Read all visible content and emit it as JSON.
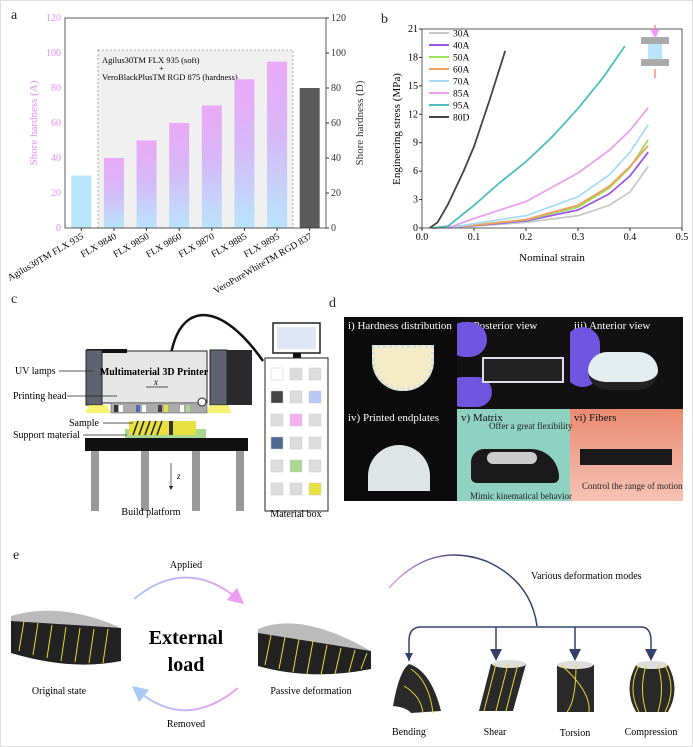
{
  "panels": {
    "a": "a",
    "b": "b",
    "c": "c",
    "d": "d",
    "e": "e"
  },
  "chart_data": [
    {
      "type": "bar",
      "title": "",
      "categories": [
        "Agilus30TM FLX 935",
        "FLX 9840",
        "FLX 9850",
        "FLX 9860",
        "FLX 9870",
        "FLX 9885",
        "FLX 9895",
        "VeroPureWhiteTM RGD 837"
      ],
      "values": [
        30,
        40,
        50,
        60,
        70,
        85,
        95,
        80
      ],
      "value_axis": [
        "A",
        "A",
        "A",
        "A",
        "A",
        "A",
        "A",
        "D"
      ],
      "ylabel": "Shore hardness (A)",
      "ylabel_right": "Shore hardness (D)",
      "ylim": [
        0,
        120
      ],
      "yticks": [
        "0",
        "20",
        "40",
        "60",
        "80",
        "100",
        "120"
      ],
      "annotation": {
        "line1": "Agilus30TM FLX 935 (soft)",
        "plus": "+",
        "line2": "VeroBlackPlusTM RGD 875 (hardness)"
      },
      "colors": {
        "soft": "#b9e4fb",
        "mix_top": "#eaa9f7",
        "rigid": "#5a5a5a",
        "box": "#f0f0f0"
      }
    },
    {
      "type": "line",
      "xlabel": "Nominal strain",
      "ylabel": "Engineering stress (MPa)",
      "xlim": [
        0,
        0.5
      ],
      "ylim": [
        0,
        21
      ],
      "xticks": [
        "0.0",
        "0.1",
        "0.2",
        "0.3",
        "0.4",
        "0.5"
      ],
      "yticks": [
        "0",
        "3",
        "6",
        "9",
        "12",
        "15",
        "18",
        "21"
      ],
      "legend_position": "top-left",
      "series": [
        {
          "name": "30A",
          "color": "#c8c8c8",
          "x": [
            0.02,
            0.1,
            0.2,
            0.3,
            0.36,
            0.4,
            0.435
          ],
          "y": [
            0,
            0.2,
            0.6,
            1.3,
            2.4,
            3.8,
            6.5
          ]
        },
        {
          "name": "40A",
          "color": "#9b59e6",
          "x": [
            0.02,
            0.1,
            0.2,
            0.3,
            0.36,
            0.4,
            0.435
          ],
          "y": [
            0,
            0.25,
            0.75,
            1.9,
            3.6,
            5.5,
            8
          ]
        },
        {
          "name": "50A",
          "color": "#9ce05a",
          "x": [
            0.02,
            0.1,
            0.2,
            0.3,
            0.36,
            0.4,
            0.435
          ],
          "y": [
            0,
            0.3,
            0.85,
            2.2,
            4.2,
            6.4,
            9.3
          ]
        },
        {
          "name": "60A",
          "color": "#f0a060",
          "x": [
            0.02,
            0.1,
            0.2,
            0.3,
            0.36,
            0.4,
            0.435
          ],
          "y": [
            0,
            0.3,
            0.9,
            2.4,
            4.4,
            6.5,
            8.7
          ]
        },
        {
          "name": "70A",
          "color": "#a8dcf5",
          "x": [
            0.05,
            0.1,
            0.2,
            0.3,
            0.36,
            0.4,
            0.435
          ],
          "y": [
            0,
            0.45,
            1.3,
            3.3,
            5.6,
            8,
            10.9
          ]
        },
        {
          "name": "85A",
          "color": "#eaa2ee",
          "x": [
            0.05,
            0.1,
            0.2,
            0.3,
            0.36,
            0.4,
            0.435
          ],
          "y": [
            0,
            1,
            2.8,
            5.8,
            8.2,
            10.3,
            12.7
          ]
        },
        {
          "name": "95A",
          "color": "#4dbdbe",
          "x": [
            0.02,
            0.05,
            0.1,
            0.15,
            0.2,
            0.25,
            0.3,
            0.35,
            0.39
          ],
          "y": [
            0,
            0.2,
            2.4,
            4.8,
            7,
            9.6,
            12.6,
            16,
            19.2
          ]
        },
        {
          "name": "80D",
          "color": "#444444",
          "x": [
            0.015,
            0.03,
            0.05,
            0.08,
            0.1,
            0.13,
            0.16
          ],
          "y": [
            0,
            0.6,
            2.5,
            6,
            8.6,
            13.5,
            18.7
          ]
        }
      ]
    }
  ],
  "panel_c": {
    "printer_label": "Multimaterial 3D Printer",
    "axis_x": "x",
    "axis_z": "z",
    "uv_lamps": "UV lamps",
    "printing_head": "Printing head",
    "sample": "Sample",
    "support": "Support material",
    "build_platform": "Build platform",
    "material_box": "Material box",
    "material_colors": [
      "#ffffff",
      "#dcdcdc",
      "#dcdcdc",
      "#444444",
      "#dcdcdc",
      "#b8c8f5",
      "#dcdcdc",
      "#f2b0f0",
      "#dcdcdc",
      "#4e6a92",
      "#dcdcdc",
      "#dcdcdc",
      "#dcdcdc",
      "#a8d890",
      "#dcdcdc",
      "#dcdcdc",
      "#dcdcdc",
      "#e8e040"
    ]
  },
  "panel_d": {
    "photos": [
      {
        "label": "i) Hardness distribution"
      },
      {
        "label": "ii) Posterior view"
      },
      {
        "label": "iii) Anterior view"
      },
      {
        "label": "iv) Printed endplates"
      },
      {
        "label": "v) Matrix"
      },
      {
        "label": "vi) Fibers"
      }
    ],
    "matrix_top": "Offer a great flexibility",
    "matrix_bottom": "Mimic kinematical behavior",
    "fibers_note": "Control the range of motion"
  },
  "panel_e": {
    "applied": "Applied",
    "removed": "Removed",
    "external1": "External",
    "external2": "load",
    "original": "Original state",
    "passive": "Passive deformation",
    "modes_title": "Various deformation modes",
    "modes": [
      "Bending",
      "Shear",
      "Torsion",
      "Compression"
    ]
  }
}
